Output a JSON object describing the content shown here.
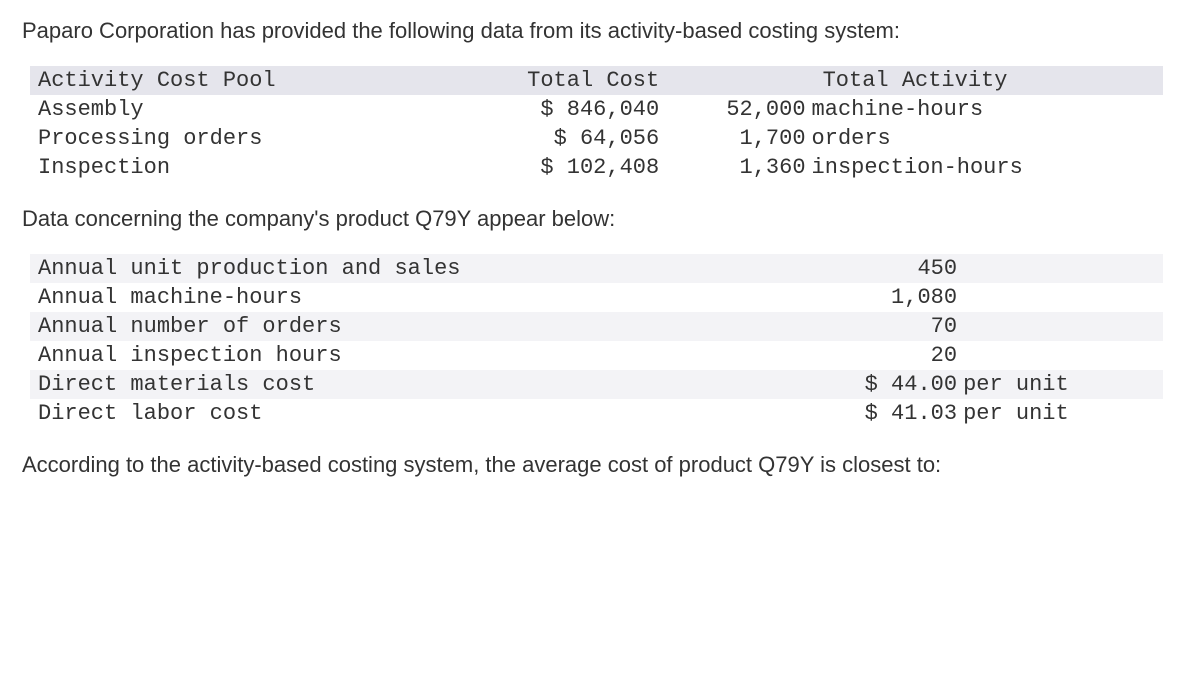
{
  "intro": "Paparo Corporation has provided the following data from its activity-based costing system:",
  "table1": {
    "headers": {
      "pool": "Activity Cost Pool",
      "cost": "Total Cost",
      "activity": "Total Activity"
    },
    "rows": [
      {
        "pool": "Assembly",
        "cost": "$ 846,040",
        "act_num": "52,000",
        "act_unit": "machine-hours"
      },
      {
        "pool": "Processing orders",
        "cost": "$ 64,056",
        "act_num": "1,700",
        "act_unit": "orders"
      },
      {
        "pool": "Inspection",
        "cost": "$ 102,408",
        "act_num": "1,360",
        "act_unit": "inspection-hours"
      }
    ]
  },
  "mid": "Data concerning the company's product Q79Y appear below:",
  "table2": {
    "rows": [
      {
        "label": "Annual unit production and sales",
        "num": "450",
        "unit": "",
        "alt": true
      },
      {
        "label": "Annual machine-hours",
        "num": "1,080",
        "unit": "",
        "alt": false
      },
      {
        "label": "Annual number of orders",
        "num": "70",
        "unit": "",
        "alt": true
      },
      {
        "label": "Annual inspection hours",
        "num": "20",
        "unit": "",
        "alt": false
      },
      {
        "label": "Direct materials cost",
        "num": "$ 44.00",
        "unit": "per unit",
        "alt": true
      },
      {
        "label": "Direct labor cost",
        "num": "$ 41.03",
        "unit": "per unit",
        "alt": false
      }
    ]
  },
  "question": "According to the activity-based costing system, the average cost of product Q79Y is closest to:"
}
